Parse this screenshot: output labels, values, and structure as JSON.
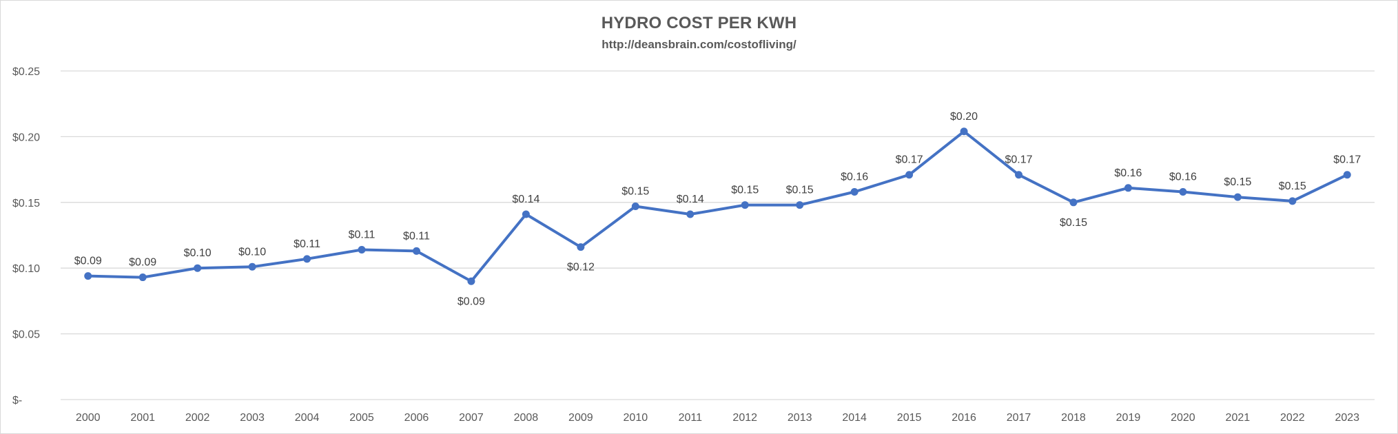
{
  "chart_data": {
    "type": "line",
    "title": "HYDRO COST PER KWH",
    "subtitle": "http://deansbrain.com/costofliving/",
    "xlabel": "",
    "ylabel": "",
    "categories": [
      "2000",
      "2001",
      "2002",
      "2003",
      "2004",
      "2005",
      "2006",
      "2007",
      "2008",
      "2009",
      "2010",
      "2011",
      "2012",
      "2013",
      "2014",
      "2015",
      "2016",
      "2017",
      "2018",
      "2019",
      "2020",
      "2021",
      "2022",
      "2023"
    ],
    "values": [
      0.094,
      0.093,
      0.1,
      0.101,
      0.107,
      0.114,
      0.113,
      0.09,
      0.141,
      0.116,
      0.147,
      0.141,
      0.148,
      0.148,
      0.158,
      0.171,
      0.204,
      0.171,
      0.15,
      0.161,
      0.158,
      0.154,
      0.151,
      0.171
    ],
    "data_labels": [
      "$0.09",
      "$0.09",
      "$0.10",
      "$0.10",
      "$0.11",
      "$0.11",
      "$0.11",
      "$0.09",
      "$0.14",
      "$0.12",
      "$0.15",
      "$0.14",
      "$0.15",
      "$0.15",
      "$0.16",
      "$0.17",
      "$0.20",
      "$0.17",
      "$0.15",
      "$0.16",
      "$0.16",
      "$0.15",
      "$0.15",
      "$0.17"
    ],
    "ylim": [
      0,
      0.25
    ],
    "y_ticks": [
      0,
      0.05,
      0.1,
      0.15,
      0.2,
      0.25
    ],
    "y_tick_labels": [
      "$-",
      "$0.05",
      "$0.10",
      "$0.15",
      "$0.20",
      "$0.25"
    ],
    "grid": true,
    "legend": "none",
    "series_color": "#4472c4",
    "gridline_color": "#d9d9d9"
  }
}
